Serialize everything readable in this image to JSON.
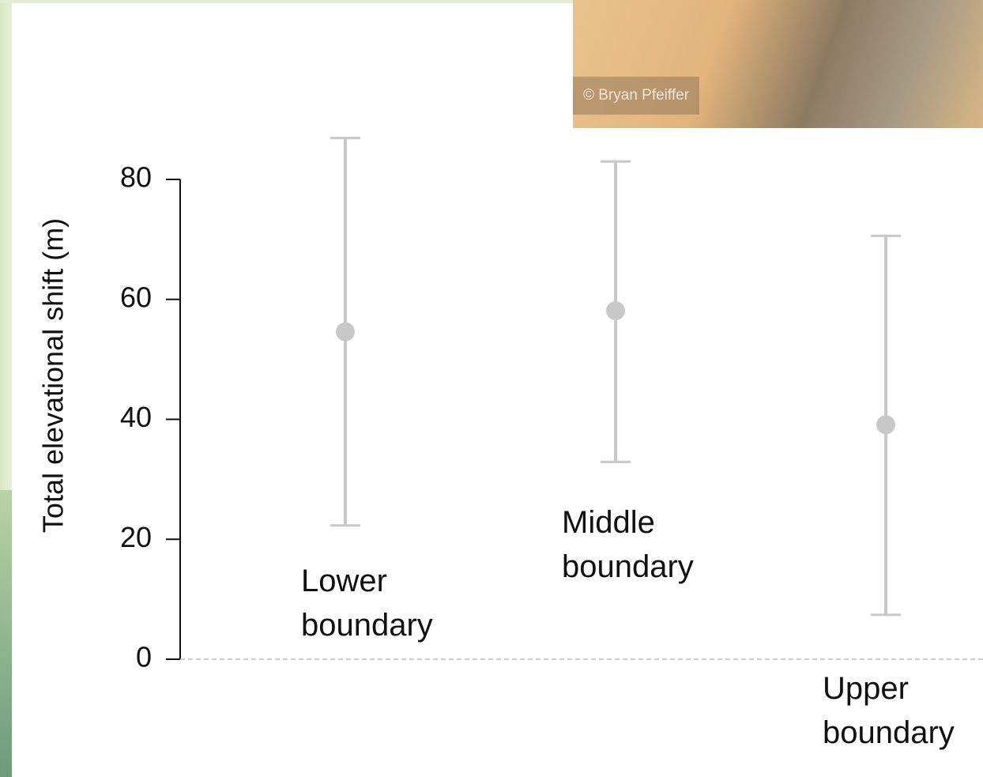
{
  "photo_credit": "© Bryan Pfeiffer",
  "chart_data": {
    "type": "errorbar",
    "y_label": "Total elevational shift (m)",
    "categories": [
      "Lower boundary",
      "Middle boundary",
      "Upper boundary"
    ],
    "values": [
      54.6,
      58.1,
      39.1
    ],
    "lower": [
      22.3,
      32.9,
      7.4
    ],
    "upper": [
      86.9,
      83.0,
      70.6
    ],
    "color": "#c8c8c8",
    "ylim": [
      0,
      80
    ],
    "yticks": [
      0,
      20,
      40,
      60,
      80
    ],
    "zero_line": true
  }
}
